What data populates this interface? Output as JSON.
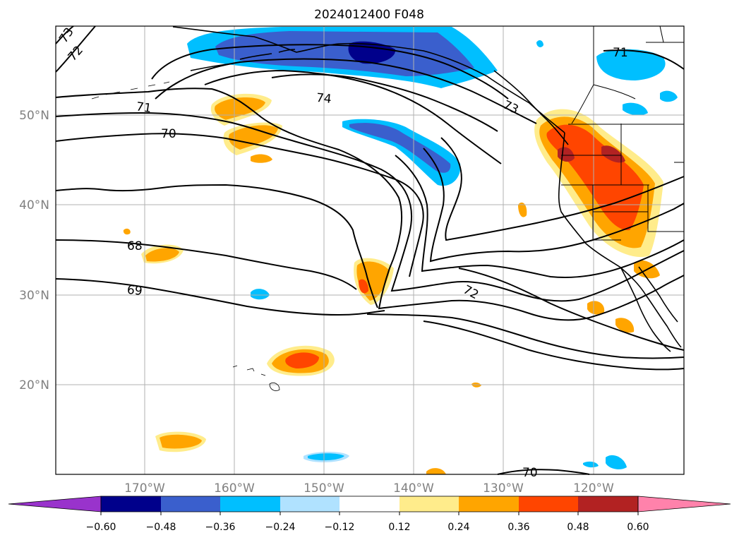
{
  "title": "2024012400 F048",
  "lon_ticks": [
    "170°W",
    "160°W",
    "150°W",
    "140°W",
    "130°W",
    "120°W"
  ],
  "lat_ticks": [
    "50°N",
    "40°N",
    "30°N",
    "20°N"
  ],
  "colorbar": {
    "labels": [
      "−0.60",
      "−0.48",
      "−0.36",
      "−0.24",
      "−0.12",
      "0.12",
      "0.24",
      "0.36",
      "0.48",
      "0.60"
    ],
    "colors": [
      "#9933cc",
      "#00008b",
      "#3a5fcd",
      "#00bfff",
      "#b0e2ff",
      "#ffffff",
      "#ffec8b",
      "#ffa500",
      "#ff4500",
      "#b22222",
      "#ff82ab"
    ]
  },
  "contour_labels": [
    "73",
    "72",
    "71",
    "70",
    "74",
    "73",
    "71",
    "68",
    "69",
    "72",
    "70"
  ],
  "colors": {
    "deep_blue": "#00008b",
    "mid_blue": "#3a5fcd",
    "sky_blue": "#00bfff",
    "light_blue": "#b0e2ff",
    "light_yellow": "#ffec8b",
    "orange": "#ffa500",
    "red_orange": "#ff4500",
    "dark_red": "#b22222"
  }
}
